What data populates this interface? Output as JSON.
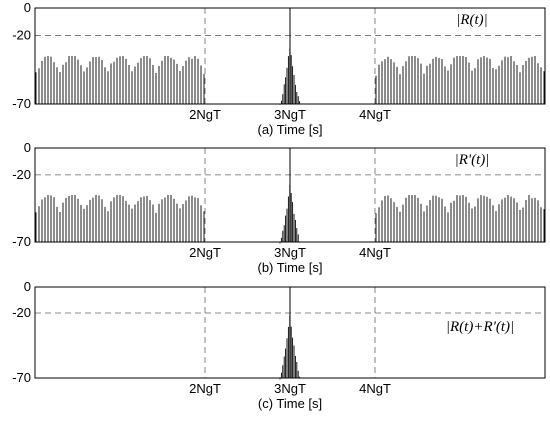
{
  "chart_data": [
    {
      "type": "line",
      "panel": "a",
      "legend": "|R(t)|",
      "xlabel": "(a) Time [s]",
      "ylim": [
        -70,
        0
      ],
      "yticks": [
        0,
        -20,
        -70
      ],
      "xticks": [
        {
          "value": 2,
          "label": "2NgT"
        },
        {
          "value": 3,
          "label": "3NgT"
        },
        {
          "value": 4,
          "label": "4NgT"
        }
      ],
      "xlim": [
        0,
        6
      ],
      "grid": "dashed",
      "legend_position": "top-right",
      "side_envelope_db": -47,
      "side_peak_db": -35,
      "center_peak_db": 0,
      "center_shoulder_db": -45,
      "signal_regions": [
        [
          0,
          2
        ],
        [
          4,
          6
        ]
      ]
    },
    {
      "type": "line",
      "panel": "b",
      "legend": "|R'(t)|",
      "xlabel": "(b) Time [s]",
      "ylim": [
        -70,
        0
      ],
      "yticks": [
        0,
        -20,
        -70
      ],
      "xticks": [
        {
          "value": 2,
          "label": "2NgT"
        },
        {
          "value": 3,
          "label": "3NgT"
        },
        {
          "value": 4,
          "label": "4NgT"
        }
      ],
      "xlim": [
        0,
        6
      ],
      "grid": "dashed",
      "legend_position": "top-right",
      "side_envelope_db": -47,
      "side_peak_db": -35,
      "center_peak_db": 0,
      "center_shoulder_db": -45,
      "signal_regions": [
        [
          0,
          2
        ],
        [
          4,
          6
        ]
      ]
    },
    {
      "type": "line",
      "panel": "c",
      "legend": "|R(t)+R'(t)|",
      "xlabel": "(c) Time [s]",
      "ylim": [
        -70,
        0
      ],
      "yticks": [
        0,
        -20,
        -70
      ],
      "xticks": [
        {
          "value": 2,
          "label": "2NgT"
        },
        {
          "value": 3,
          "label": "3NgT"
        },
        {
          "value": 4,
          "label": "4NgT"
        }
      ],
      "xlim": [
        0,
        6
      ],
      "grid": "dashed",
      "legend_position": "right",
      "side_envelope_db": null,
      "side_peak_db": null,
      "center_peak_db": 0,
      "center_shoulder_db": -40,
      "signal_regions": []
    }
  ]
}
